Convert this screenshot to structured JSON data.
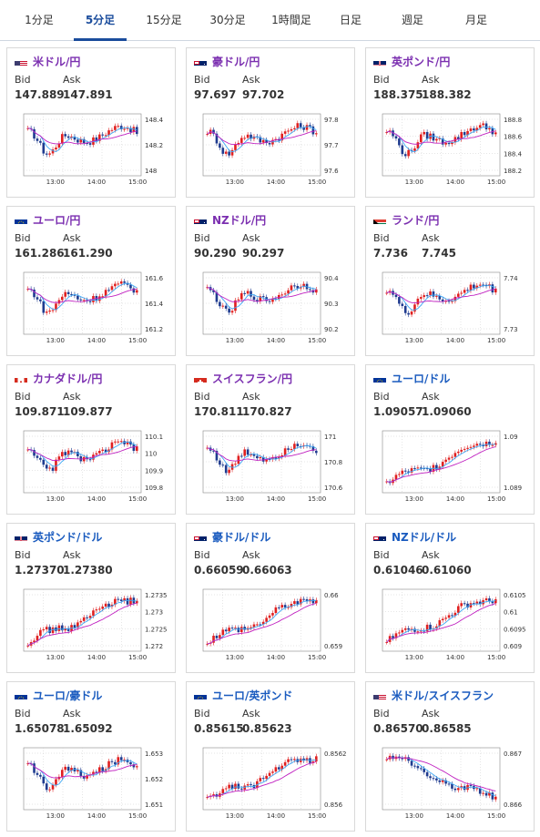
{
  "tabs": [
    {
      "label": "1分足",
      "active": false
    },
    {
      "label": "5分足",
      "active": true
    },
    {
      "label": "15分足",
      "active": false
    },
    {
      "label": "30分足",
      "active": false
    },
    {
      "label": "1時間足",
      "active": false
    },
    {
      "label": "日足",
      "active": false
    },
    {
      "label": "週足",
      "active": false
    },
    {
      "label": "月足",
      "active": false
    }
  ],
  "labels": {
    "bid": "Bid",
    "ask": "Ask"
  },
  "colors": {
    "up": "#e02020",
    "down": "#1f3b8f",
    "ma_short": "#3fa9f5",
    "ma_long": "#c020c0",
    "accent": "#1a4c9c"
  },
  "pairs": [
    {
      "name": "米ドル/円",
      "bid": "147.889",
      "ask": "147.891",
      "flag": "us",
      "x_ticks": [
        "13:00",
        "14:00",
        "15:00"
      ],
      "y_ticks": [
        "148.4",
        "148.2",
        "148"
      ],
      "group": "jpy"
    },
    {
      "name": "豪ドル/円",
      "bid": "97.697",
      "ask": "97.702",
      "flag": "au",
      "x_ticks": [
        "13:00",
        "14:00",
        "15:00"
      ],
      "y_ticks": [
        "97.8",
        "97.7",
        "97.6"
      ],
      "group": "jpy"
    },
    {
      "name": "英ポンド/円",
      "bid": "188.375",
      "ask": "188.382",
      "flag": "uk",
      "x_ticks": [
        "13:00",
        "14:00",
        "15:00"
      ],
      "y_ticks": [
        "188.8",
        "188.6",
        "188.4",
        "188.2"
      ],
      "group": "jpy"
    },
    {
      "name": "ユーロ/円",
      "bid": "161.286",
      "ask": "161.290",
      "flag": "eu",
      "x_ticks": [
        "13:00",
        "14:00",
        "15:00"
      ],
      "y_ticks": [
        "161.6",
        "161.4",
        "161.2"
      ],
      "group": "jpy"
    },
    {
      "name": "NZドル/円",
      "bid": "90.290",
      "ask": "90.297",
      "flag": "nz",
      "x_ticks": [
        "13:00",
        "14:00",
        "15:00"
      ],
      "y_ticks": [
        "90.4",
        "90.3",
        "90.2"
      ],
      "group": "jpy"
    },
    {
      "name": "ランド/円",
      "bid": "7.736",
      "ask": "7.745",
      "flag": "za",
      "x_ticks": [
        "13:00",
        "14:00",
        "15:00"
      ],
      "y_ticks": [
        "7.74",
        "7.73"
      ],
      "group": "jpy"
    },
    {
      "name": "カナダドル/円",
      "bid": "109.871",
      "ask": "109.877",
      "flag": "ca",
      "x_ticks": [
        "13:00",
        "14:00",
        "15:00"
      ],
      "y_ticks": [
        "110.1",
        "110",
        "109.9",
        "109.8"
      ],
      "group": "jpy"
    },
    {
      "name": "スイスフラン/円",
      "bid": "170.811",
      "ask": "170.827",
      "flag": "ch",
      "x_ticks": [
        "13:00",
        "14:00",
        "15:00"
      ],
      "y_ticks": [
        "171",
        "170.8",
        "170.6"
      ],
      "group": "jpy"
    },
    {
      "name": "ユーロ/ドル",
      "bid": "1.09057",
      "ask": "1.09060",
      "flag": "eu",
      "x_ticks": [
        "13:00",
        "14:00",
        "15:00"
      ],
      "y_ticks": [
        "1.09",
        "1.089"
      ],
      "group": "usd"
    },
    {
      "name": "英ポンド/ドル",
      "bid": "1.27370",
      "ask": "1.27380",
      "flag": "uk",
      "x_ticks": [
        "13:00",
        "14:00",
        "15:00"
      ],
      "y_ticks": [
        "1.2735",
        "1.273",
        "1.2725",
        "1.272"
      ],
      "group": "usd"
    },
    {
      "name": "豪ドル/ドル",
      "bid": "0.66059",
      "ask": "0.66063",
      "flag": "au",
      "x_ticks": [
        "13:00",
        "14:00",
        "15:00"
      ],
      "y_ticks": [
        "0.66",
        "0.659"
      ],
      "group": "usd"
    },
    {
      "name": "NZドル/ドル",
      "bid": "0.61046",
      "ask": "0.61060",
      "flag": "nz",
      "x_ticks": [
        "13:00",
        "14:00",
        "15:00"
      ],
      "y_ticks": [
        "0.6105",
        "0.61",
        "0.6095",
        "0.609"
      ],
      "group": "usd"
    },
    {
      "name": "ユーロ/豪ドル",
      "bid": "1.65078",
      "ask": "1.65092",
      "flag": "eu",
      "x_ticks": [
        "13:00",
        "14:00",
        "15:00"
      ],
      "y_ticks": [
        "1.653",
        "1.652",
        "1.651"
      ],
      "group": "usd"
    },
    {
      "name": "ユーロ/英ポンド",
      "bid": "0.85615",
      "ask": "0.85623",
      "flag": "eu",
      "x_ticks": [
        "13:00",
        "14:00",
        "15:00"
      ],
      "y_ticks": [
        "0.8562",
        "0.856"
      ],
      "group": "usd"
    },
    {
      "name": "米ドル/スイスフラン",
      "bid": "0.86570",
      "ask": "0.86585",
      "flag": "us",
      "x_ticks": [
        "13:00",
        "14:00",
        "15:00"
      ],
      "y_ticks": [
        "0.867",
        "0.866"
      ],
      "group": "usd"
    }
  ]
}
